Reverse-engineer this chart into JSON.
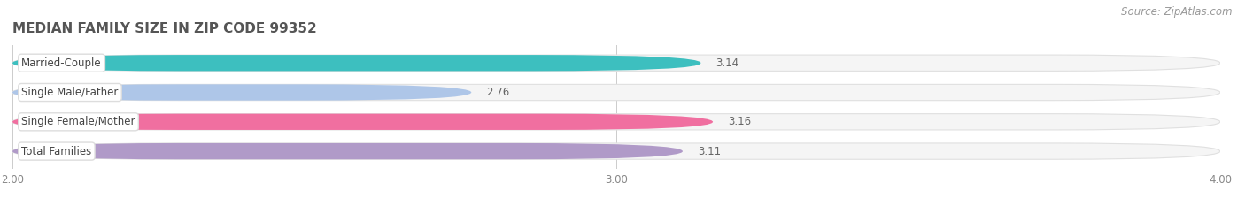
{
  "title": "MEDIAN FAMILY SIZE IN ZIP CODE 99352",
  "source": "Source: ZipAtlas.com",
  "categories": [
    "Married-Couple",
    "Single Male/Father",
    "Single Female/Mother",
    "Total Families"
  ],
  "values": [
    3.14,
    2.76,
    3.16,
    3.11
  ],
  "bar_colors": [
    "#3dbfbf",
    "#aec6e8",
    "#f06fa0",
    "#b09ac8"
  ],
  "xlim": [
    2.0,
    4.0
  ],
  "xticks": [
    2.0,
    3.0,
    4.0
  ],
  "xtick_labels": [
    "2.00",
    "3.00",
    "4.00"
  ],
  "background_color": "#ffffff",
  "bar_bg_color": "#f5f5f5",
  "bar_border_color": "#e0e0e0",
  "title_fontsize": 11,
  "label_fontsize": 8.5,
  "value_fontsize": 8.5,
  "source_fontsize": 8.5,
  "bar_height": 0.55,
  "bar_gap": 0.12
}
